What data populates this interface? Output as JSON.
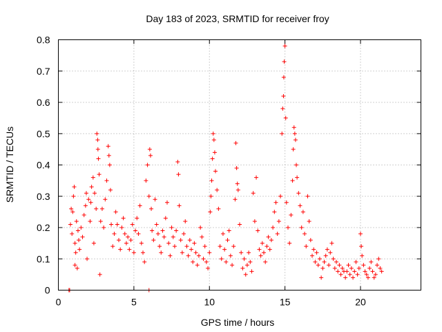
{
  "chart_data": {
    "type": "scatter",
    "title": "Day 183 of 2023, SRMTID for receiver froy",
    "xlabel": "GPS time / hours",
    "ylabel": "SRMTID / TECUs",
    "xlim": [
      0,
      24
    ],
    "ylim": [
      0,
      0.8
    ],
    "x_ticks": [
      0,
      5,
      10,
      15,
      20
    ],
    "y_ticks": [
      0,
      0.1,
      0.2,
      0.3,
      0.4,
      0.5,
      0.6,
      0.7,
      0.8
    ],
    "x_tick_labels": [
      "0",
      "5",
      "10",
      "15",
      "20"
    ],
    "y_tick_labels": [
      "0",
      "0.1",
      "0.2",
      "0.3",
      "0.4",
      "0.5",
      "0.6",
      "0.7",
      "0.8"
    ],
    "grid": true,
    "marker": "+",
    "color": "#ff0000",
    "series": [
      {
        "name": "SRMTID",
        "points": [
          [
            0.7,
            0.0
          ],
          [
            0.75,
            0.0
          ],
          [
            6.0,
            0.0
          ],
          [
            0.8,
            0.21
          ],
          [
            0.85,
            0.26
          ],
          [
            0.9,
            0.18
          ],
          [
            0.95,
            0.25
          ],
          [
            1.0,
            0.3
          ],
          [
            1.05,
            0.33
          ],
          [
            1.1,
            0.15
          ],
          [
            1.1,
            0.08
          ],
          [
            1.15,
            0.12
          ],
          [
            1.2,
            0.22
          ],
          [
            1.25,
            0.07
          ],
          [
            1.3,
            0.19
          ],
          [
            1.35,
            0.16
          ],
          [
            1.4,
            0.13
          ],
          [
            1.5,
            0.2
          ],
          [
            1.6,
            0.17
          ],
          [
            1.7,
            0.24
          ],
          [
            1.8,
            0.27
          ],
          [
            1.85,
            0.31
          ],
          [
            1.9,
            0.1
          ],
          [
            2.0,
            0.29
          ],
          [
            2.1,
            0.22
          ],
          [
            2.15,
            0.28
          ],
          [
            2.2,
            0.33
          ],
          [
            2.3,
            0.36
          ],
          [
            2.35,
            0.15
          ],
          [
            2.4,
            0.31
          ],
          [
            2.5,
            0.26
          ],
          [
            2.55,
            0.5
          ],
          [
            2.6,
            0.48
          ],
          [
            2.62,
            0.45
          ],
          [
            2.65,
            0.42
          ],
          [
            2.7,
            0.37
          ],
          [
            2.75,
            0.05
          ],
          [
            2.8,
            0.22
          ],
          [
            2.9,
            0.26
          ],
          [
            3.0,
            0.2
          ],
          [
            3.1,
            0.29
          ],
          [
            3.2,
            0.35
          ],
          [
            3.3,
            0.46
          ],
          [
            3.35,
            0.43
          ],
          [
            3.4,
            0.4
          ],
          [
            3.45,
            0.32
          ],
          [
            3.5,
            0.21
          ],
          [
            3.6,
            0.14
          ],
          [
            3.7,
            0.18
          ],
          [
            3.8,
            0.25
          ],
          [
            3.9,
            0.21
          ],
          [
            4.0,
            0.16
          ],
          [
            4.1,
            0.13
          ],
          [
            4.2,
            0.2
          ],
          [
            4.3,
            0.23
          ],
          [
            4.4,
            0.18
          ],
          [
            4.5,
            0.15
          ],
          [
            4.6,
            0.17
          ],
          [
            4.7,
            0.13
          ],
          [
            4.8,
            0.16
          ],
          [
            4.9,
            0.21
          ],
          [
            5.0,
            0.12
          ],
          [
            5.1,
            0.19
          ],
          [
            5.2,
            0.23
          ],
          [
            5.3,
            0.18
          ],
          [
            5.4,
            0.27
          ],
          [
            5.5,
            0.15
          ],
          [
            5.6,
            0.12
          ],
          [
            5.7,
            0.09
          ],
          [
            5.8,
            0.35
          ],
          [
            5.9,
            0.4
          ],
          [
            6.0,
            0.3
          ],
          [
            6.05,
            0.45
          ],
          [
            6.1,
            0.43
          ],
          [
            6.15,
            0.26
          ],
          [
            6.2,
            0.19
          ],
          [
            6.3,
            0.16
          ],
          [
            6.4,
            0.29
          ],
          [
            6.5,
            0.21
          ],
          [
            6.6,
            0.18
          ],
          [
            6.7,
            0.14
          ],
          [
            6.8,
            0.12
          ],
          [
            6.9,
            0.19
          ],
          [
            7.0,
            0.17
          ],
          [
            7.1,
            0.23
          ],
          [
            7.2,
            0.28
          ],
          [
            7.3,
            0.15
          ],
          [
            7.4,
            0.11
          ],
          [
            7.5,
            0.2
          ],
          [
            7.6,
            0.17
          ],
          [
            7.7,
            0.14
          ],
          [
            7.8,
            0.19
          ],
          [
            7.9,
            0.41
          ],
          [
            7.95,
            0.37
          ],
          [
            8.0,
            0.27
          ],
          [
            8.1,
            0.16
          ],
          [
            8.2,
            0.12
          ],
          [
            8.3,
            0.18
          ],
          [
            8.4,
            0.22
          ],
          [
            8.5,
            0.14
          ],
          [
            8.6,
            0.11
          ],
          [
            8.7,
            0.16
          ],
          [
            8.8,
            0.13
          ],
          [
            8.9,
            0.09
          ],
          [
            9.0,
            0.15
          ],
          [
            9.1,
            0.12
          ],
          [
            9.2,
            0.08
          ],
          [
            9.3,
            0.11
          ],
          [
            9.4,
            0.2
          ],
          [
            9.5,
            0.17
          ],
          [
            9.6,
            0.1
          ],
          [
            9.7,
            0.14
          ],
          [
            9.8,
            0.09
          ],
          [
            9.9,
            0.07
          ],
          [
            10.0,
            0.12
          ],
          [
            10.05,
            0.25
          ],
          [
            10.1,
            0.3
          ],
          [
            10.15,
            0.35
          ],
          [
            10.2,
            0.42
          ],
          [
            10.25,
            0.5
          ],
          [
            10.3,
            0.48
          ],
          [
            10.35,
            0.44
          ],
          [
            10.4,
            0.38
          ],
          [
            10.5,
            0.32
          ],
          [
            10.6,
            0.26
          ],
          [
            10.7,
            0.14
          ],
          [
            10.8,
            0.1
          ],
          [
            10.9,
            0.18
          ],
          [
            11.0,
            0.13
          ],
          [
            11.1,
            0.09
          ],
          [
            11.2,
            0.16
          ],
          [
            11.3,
            0.19
          ],
          [
            11.4,
            0.11
          ],
          [
            11.5,
            0.08
          ],
          [
            11.6,
            0.14
          ],
          [
            11.7,
            0.29
          ],
          [
            11.75,
            0.47
          ],
          [
            11.8,
            0.39
          ],
          [
            11.85,
            0.34
          ],
          [
            11.9,
            0.32
          ],
          [
            12.0,
            0.21
          ],
          [
            12.1,
            0.12
          ],
          [
            12.2,
            0.07
          ],
          [
            12.3,
            0.1
          ],
          [
            12.4,
            0.05
          ],
          [
            12.5,
            0.08
          ],
          [
            12.6,
            0.12
          ],
          [
            12.7,
            0.09
          ],
          [
            12.8,
            0.06
          ],
          [
            12.9,
            0.31
          ],
          [
            13.0,
            0.22
          ],
          [
            13.1,
            0.36
          ],
          [
            13.2,
            0.19
          ],
          [
            13.3,
            0.13
          ],
          [
            13.4,
            0.11
          ],
          [
            13.5,
            0.15
          ],
          [
            13.6,
            0.12
          ],
          [
            13.7,
            0.09
          ],
          [
            13.8,
            0.14
          ],
          [
            13.9,
            0.17
          ],
          [
            14.0,
            0.13
          ],
          [
            14.1,
            0.16
          ],
          [
            14.2,
            0.2
          ],
          [
            14.3,
            0.25
          ],
          [
            14.4,
            0.28
          ],
          [
            14.5,
            0.18
          ],
          [
            14.6,
            0.22
          ],
          [
            14.7,
            0.3
          ],
          [
            14.8,
            0.5
          ],
          [
            14.85,
            0.58
          ],
          [
            14.9,
            0.62
          ],
          [
            14.92,
            0.68
          ],
          [
            14.95,
            0.73
          ],
          [
            15.0,
            0.78
          ],
          [
            15.05,
            0.55
          ],
          [
            15.1,
            0.28
          ],
          [
            15.2,
            0.2
          ],
          [
            15.3,
            0.15
          ],
          [
            15.4,
            0.24
          ],
          [
            15.5,
            0.35
          ],
          [
            15.55,
            0.45
          ],
          [
            15.6,
            0.52
          ],
          [
            15.65,
            0.5
          ],
          [
            15.7,
            0.48
          ],
          [
            15.75,
            0.4
          ],
          [
            15.8,
            0.36
          ],
          [
            15.9,
            0.31
          ],
          [
            16.0,
            0.27
          ],
          [
            16.1,
            0.2
          ],
          [
            16.2,
            0.25
          ],
          [
            16.3,
            0.18
          ],
          [
            16.4,
            0.14
          ],
          [
            16.5,
            0.3
          ],
          [
            16.6,
            0.22
          ],
          [
            16.7,
            0.16
          ],
          [
            16.8,
            0.11
          ],
          [
            16.9,
            0.13
          ],
          [
            17.0,
            0.09
          ],
          [
            17.1,
            0.12
          ],
          [
            17.2,
            0.08
          ],
          [
            17.3,
            0.1
          ],
          [
            17.4,
            0.04
          ],
          [
            17.5,
            0.07
          ],
          [
            17.6,
            0.09
          ],
          [
            17.7,
            0.11
          ],
          [
            17.8,
            0.13
          ],
          [
            17.9,
            0.08
          ],
          [
            18.0,
            0.12
          ],
          [
            18.1,
            0.15
          ],
          [
            18.2,
            0.1
          ],
          [
            18.3,
            0.07
          ],
          [
            18.4,
            0.09
          ],
          [
            18.5,
            0.06
          ],
          [
            18.6,
            0.08
          ],
          [
            18.7,
            0.05
          ],
          [
            18.8,
            0.07
          ],
          [
            18.9,
            0.06
          ],
          [
            19.0,
            0.04
          ],
          [
            19.1,
            0.06
          ],
          [
            19.2,
            0.08
          ],
          [
            19.3,
            0.05
          ],
          [
            19.4,
            0.07
          ],
          [
            19.5,
            0.04
          ],
          [
            19.6,
            0.06
          ],
          [
            19.7,
            0.09
          ],
          [
            19.8,
            0.05
          ],
          [
            19.9,
            0.07
          ],
          [
            20.0,
            0.18
          ],
          [
            20.05,
            0.14
          ],
          [
            20.1,
            0.11
          ],
          [
            20.2,
            0.08
          ],
          [
            20.3,
            0.06
          ],
          [
            20.4,
            0.05
          ],
          [
            20.5,
            0.04
          ],
          [
            20.6,
            0.07
          ],
          [
            20.7,
            0.09
          ],
          [
            20.8,
            0.06
          ],
          [
            20.9,
            0.04
          ],
          [
            21.0,
            0.05
          ],
          [
            21.1,
            0.08
          ],
          [
            21.2,
            0.1
          ],
          [
            21.3,
            0.07
          ],
          [
            21.4,
            0.06
          ]
        ]
      }
    ]
  }
}
